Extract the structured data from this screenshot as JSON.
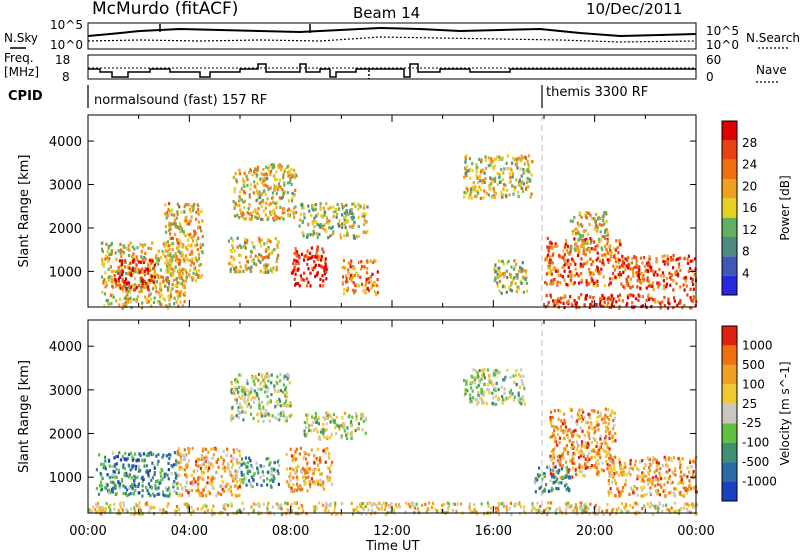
{
  "header": {
    "station": "McMurdo (fitACF)",
    "beam": "Beam 14",
    "date": "10/Dec/2011"
  },
  "top_panel": {
    "left_label": "N.Sky",
    "right_label": "N.Search",
    "tick_hi": "10^5",
    "tick_lo": "10^0",
    "tick_hi_r": "10^5",
    "tick_lo_r": "10^0"
  },
  "freq_panel": {
    "label_top": "Freq.",
    "label_unit": "[MHz]",
    "right_label": "Nave",
    "left_ticks": [
      "18",
      "8"
    ],
    "right_ticks": [
      "60",
      "0"
    ]
  },
  "cpid": {
    "label": "CPID",
    "mode1": "normalsound (fast) 157 RF",
    "mode2": "themis 3300 RF"
  },
  "x_axis": {
    "title": "Time UT",
    "ticks": [
      "00:00",
      "04:00",
      "08:00",
      "12:00",
      "16:00",
      "20:00",
      "00:00"
    ]
  },
  "chart_data": [
    {
      "type": "heatmap",
      "panel": "power",
      "ylabel": "Slant Range [km]",
      "y_ticks": [
        "4000",
        "3000",
        "2000",
        "1000"
      ],
      "ylim": [
        180,
        4600
      ],
      "colorbar_label": "Power [dB]",
      "colorbar_ticks": [
        "28",
        "24",
        "20",
        "16",
        "12",
        "8",
        "4"
      ],
      "colors": [
        "#2828e0",
        "#3f58b5",
        "#4d8a80",
        "#5fb060",
        "#e8d020",
        "#f0a020",
        "#f07010",
        "#e84010",
        "#e00000"
      ],
      "patches": [
        {
          "t": [
            0.5,
            3.8
          ],
          "r": [
            180,
            1700
          ],
          "v": 0.55
        },
        {
          "t": [
            1.0,
            2.6
          ],
          "r": [
            600,
            1300
          ],
          "v": 0.9
        },
        {
          "t": [
            3.0,
            4.5
          ],
          "r": [
            800,
            2600
          ],
          "v": 0.6
        },
        {
          "t": [
            5.5,
            7.5
          ],
          "r": [
            1000,
            1800
          ],
          "v": 0.5
        },
        {
          "t": [
            5.7,
            8.2
          ],
          "r": [
            2200,
            3500
          ],
          "v": 0.55
        },
        {
          "t": [
            8.0,
            9.4
          ],
          "r": [
            700,
            1600
          ],
          "v": 0.9
        },
        {
          "t": [
            8.3,
            11.0
          ],
          "r": [
            1800,
            2600
          ],
          "v": 0.45
        },
        {
          "t": [
            10.0,
            11.4
          ],
          "r": [
            500,
            1300
          ],
          "v": 0.7
        },
        {
          "t": [
            14.8,
            17.5
          ],
          "r": [
            2700,
            3700
          ],
          "v": 0.5
        },
        {
          "t": [
            16.0,
            17.3
          ],
          "r": [
            500,
            1300
          ],
          "v": 0.45
        },
        {
          "t": [
            18.0,
            21.0
          ],
          "r": [
            700,
            1800
          ],
          "v": 0.75
        },
        {
          "t": [
            19.0,
            20.5
          ],
          "r": [
            1500,
            2400
          ],
          "v": 0.55
        },
        {
          "t": [
            21.0,
            24.0
          ],
          "r": [
            600,
            1400
          ],
          "v": 0.8
        },
        {
          "t": [
            18.0,
            24.0
          ],
          "r": [
            180,
            500
          ],
          "v": 0.85
        }
      ]
    },
    {
      "type": "heatmap",
      "panel": "velocity",
      "ylabel": "Slant Range [km]",
      "y_ticks": [
        "4000",
        "3000",
        "2000",
        "1000"
      ],
      "ylim": [
        180,
        4600
      ],
      "colorbar_label": "Velocity [m s^-1]",
      "colorbar_ticks": [
        "1000",
        "500",
        "100",
        "25",
        "-25",
        "-100",
        "-500",
        "-1000"
      ],
      "colors": [
        "#1a3fc0",
        "#2a6aa8",
        "#3e9070",
        "#62c040",
        "#c8c8c0",
        "#f2c830",
        "#f0a020",
        "#f07010",
        "#e02010"
      ],
      "patches": [
        {
          "t": [
            0.3,
            3.5
          ],
          "r": [
            600,
            1600
          ],
          "v": 0.25
        },
        {
          "t": [
            3.5,
            6.0
          ],
          "r": [
            600,
            1700
          ],
          "v": 0.7
        },
        {
          "t": [
            6.0,
            7.5
          ],
          "r": [
            800,
            1500
          ],
          "v": 0.3
        },
        {
          "t": [
            5.6,
            8.0
          ],
          "r": [
            2300,
            3400
          ],
          "v": 0.45
        },
        {
          "t": [
            7.8,
            9.6
          ],
          "r": [
            700,
            1700
          ],
          "v": 0.72
        },
        {
          "t": [
            8.5,
            11.0
          ],
          "r": [
            1900,
            2500
          ],
          "v": 0.45
        },
        {
          "t": [
            14.8,
            17.2
          ],
          "r": [
            2700,
            3500
          ],
          "v": 0.45
        },
        {
          "t": [
            18.2,
            20.8
          ],
          "r": [
            1000,
            2600
          ],
          "v": 0.75
        },
        {
          "t": [
            17.6,
            19.0
          ],
          "r": [
            700,
            1300
          ],
          "v": 0.3
        },
        {
          "t": [
            20.5,
            24.0
          ],
          "r": [
            600,
            1500
          ],
          "v": 0.72
        },
        {
          "t": [
            0,
            24.0
          ],
          "r": [
            180,
            450
          ],
          "v": 0.6
        }
      ]
    }
  ]
}
